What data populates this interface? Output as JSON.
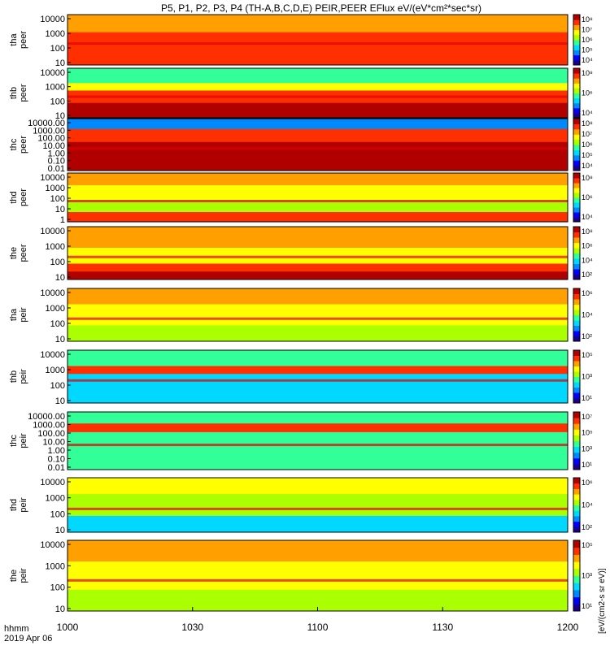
{
  "title": "P5, P1, P2, P3, P4 (TH-A,B,C,D,E) PEIR,PEER EFlux eV/(eV*cm²*sec*sr)",
  "colorbar_label": "[eV/(cm2-s sr eV)]",
  "colors": {
    "spectrogram_scale": [
      "#18008c",
      "#0000ff",
      "#0088ff",
      "#00d8ff",
      "#33ff99",
      "#aaff00",
      "#ffff00",
      "#ffa000",
      "#ff3000",
      "#b00000"
    ],
    "band_stripe": "#e00000",
    "fill_value": "#ffffff"
  },
  "chart_data": [
    {
      "type": "heatmap",
      "panel": "tha peer",
      "ylabel_lines": [
        "tha",
        "peer"
      ],
      "yscale": "log",
      "yticks": [
        "10",
        "100",
        "1000",
        "10000"
      ],
      "colorbar_ticks": [
        "10⁴",
        "10⁵",
        "10⁶",
        "10⁷",
        "10⁸"
      ]
    },
    {
      "type": "heatmap",
      "panel": "thb peer",
      "ylabel_lines": [
        "thb",
        "peer"
      ],
      "yscale": "log",
      "yticks": [
        "10",
        "100",
        "1000",
        "10000"
      ],
      "colorbar_ticks": [
        "10⁴",
        "10⁶",
        "10⁸"
      ]
    },
    {
      "type": "heatmap",
      "panel": "thc peer",
      "ylabel_lines": [
        "thc",
        "peer"
      ],
      "yscale": "log",
      "yticks": [
        "0.01",
        "0.10",
        "1.00",
        "10.00",
        "100.00",
        "1000.00",
        "10000.00"
      ],
      "colorbar_ticks": [
        "10⁴",
        "10⁵",
        "10⁶",
        "10⁷",
        "10⁸"
      ]
    },
    {
      "type": "heatmap",
      "panel": "thd peer",
      "ylabel_lines": [
        "thd",
        "peer"
      ],
      "yscale": "log",
      "yticks": [
        "1",
        "10",
        "100",
        "1000",
        "10000"
      ],
      "colorbar_ticks": [
        "10⁴",
        "10⁶",
        "10⁸"
      ]
    },
    {
      "type": "heatmap",
      "panel": "the peer",
      "ylabel_lines": [
        "the",
        "peer"
      ],
      "yscale": "log",
      "yticks": [
        "10",
        "100",
        "1000",
        "10000"
      ],
      "colorbar_ticks": [
        "10²",
        "10⁴",
        "10⁶",
        "10⁸"
      ]
    },
    {
      "type": "heatmap",
      "panel": "tha peir",
      "ylabel_lines": [
        "tha",
        "peir"
      ],
      "yscale": "log",
      "yticks": [
        "10",
        "100",
        "1000",
        "10000"
      ],
      "colorbar_ticks": [
        "10²",
        "10⁴",
        "10⁶"
      ]
    },
    {
      "type": "heatmap",
      "panel": "thb peir",
      "ylabel_lines": [
        "thb",
        "peir"
      ],
      "yscale": "log",
      "yticks": [
        "10",
        "100",
        "1000",
        "10000"
      ],
      "colorbar_ticks": [
        "10¹",
        "10³",
        "10⁵"
      ]
    },
    {
      "type": "heatmap",
      "panel": "thc peir",
      "ylabel_lines": [
        "thc",
        "peir"
      ],
      "yscale": "log",
      "yticks": [
        "0.01",
        "0.10",
        "1.00",
        "10.00",
        "100.00",
        "1000.00",
        "10000.00"
      ],
      "colorbar_ticks": [
        "10¹",
        "10³",
        "10⁵",
        "10⁷"
      ]
    },
    {
      "type": "heatmap",
      "panel": "thd peir",
      "ylabel_lines": [
        "thd",
        "peir"
      ],
      "yscale": "log",
      "yticks": [
        "10",
        "100",
        "1000",
        "10000"
      ],
      "colorbar_ticks": [
        "10²",
        "10⁴",
        "10⁶"
      ]
    },
    {
      "type": "heatmap",
      "panel": "the peir",
      "ylabel_lines": [
        "the",
        "peir"
      ],
      "yscale": "log",
      "yticks": [
        "10",
        "100",
        "1000",
        "10000"
      ],
      "colorbar_ticks": [
        "10¹",
        "10³",
        "10⁵"
      ]
    }
  ],
  "xaxis": {
    "ticks": [
      "1000",
      "1030",
      "1100",
      "1130",
      "1200"
    ],
    "time_label": "hhmm",
    "date_label": "2019 Apr 06"
  }
}
